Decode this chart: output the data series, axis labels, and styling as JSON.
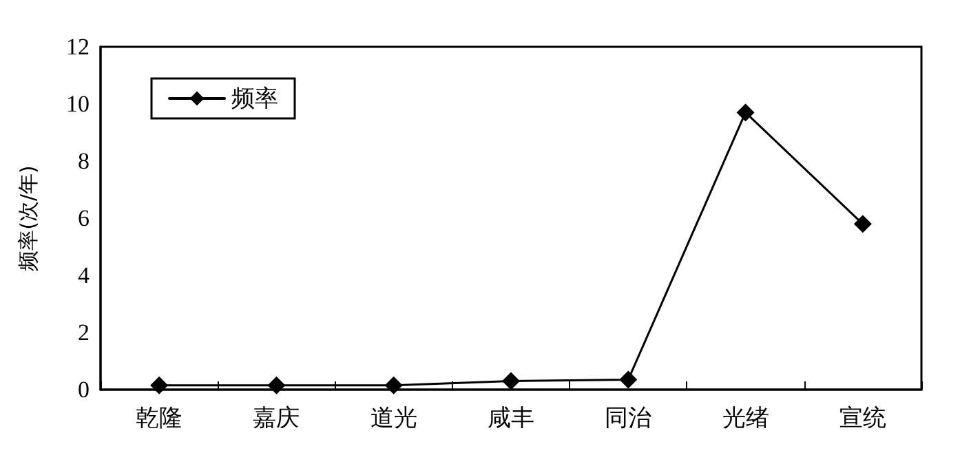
{
  "chart_data": {
    "type": "line",
    "ylabel": "频率(次/年)",
    "categories": [
      "乾隆",
      "嘉庆",
      "道光",
      "咸丰",
      "同治",
      "光绪",
      "宣统"
    ],
    "series": [
      {
        "name": "频率",
        "color": "#000000",
        "values": [
          0.15,
          0.15,
          0.15,
          0.3,
          0.35,
          9.7,
          5.8
        ]
      }
    ],
    "ylim": [
      0,
      12
    ],
    "yticks": [
      0,
      2,
      4,
      6,
      8,
      10,
      12
    ],
    "grid": false,
    "legend": "top left",
    "marker": "diamond",
    "line_style": "solid"
  }
}
